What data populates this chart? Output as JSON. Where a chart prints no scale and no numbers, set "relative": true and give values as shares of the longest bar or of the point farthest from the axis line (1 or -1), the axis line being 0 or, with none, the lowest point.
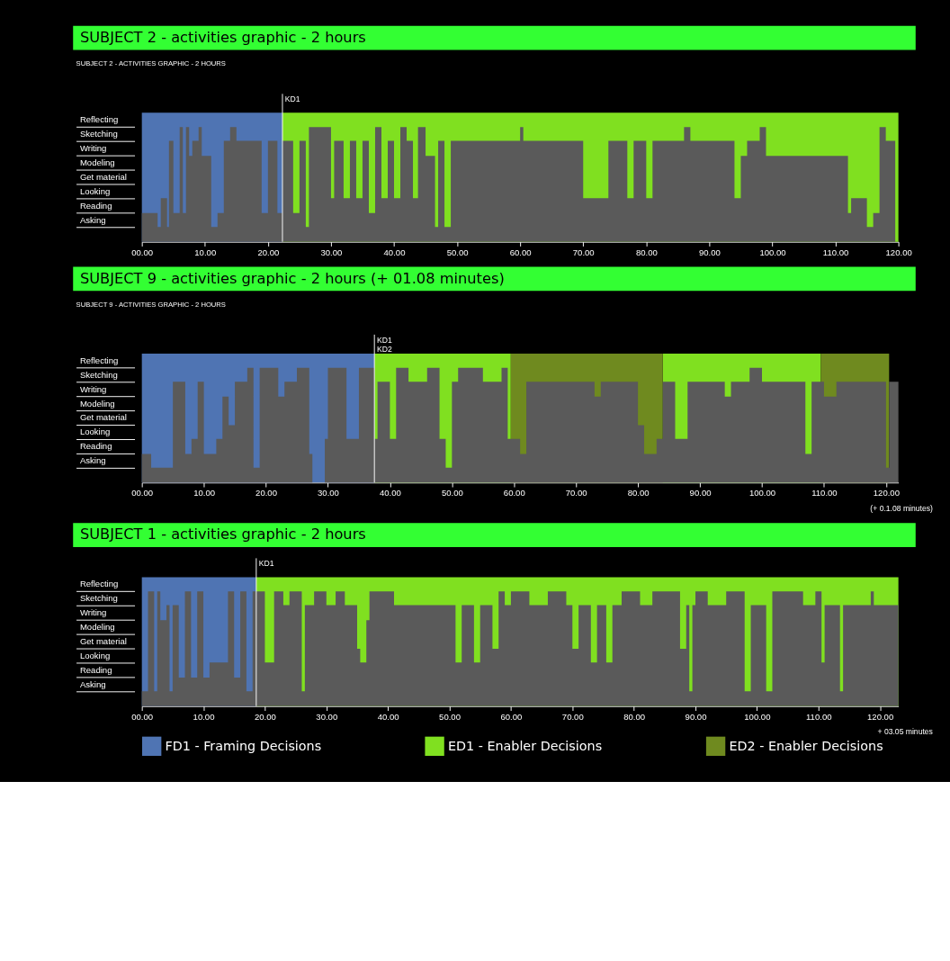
{
  "chart_data": [
    {
      "type": "area",
      "title": "SUBJECT 2 - activities graphic - 2 hours",
      "subtitle": "SUBJECT 2 - ACTIVITIES GRAPHIC - 2 HOURS",
      "relative": true,
      "xlim": [
        0,
        120
      ],
      "xticks": [
        {
          "value": 0,
          "label": "00.00"
        },
        {
          "value": 10,
          "label": "10.00"
        },
        {
          "value": 20,
          "label": "20.00"
        },
        {
          "value": 30,
          "label": "30.00"
        },
        {
          "value": 40,
          "label": "40.00"
        },
        {
          "value": 50,
          "label": "50.00"
        },
        {
          "value": 60,
          "label": "60.00"
        },
        {
          "value": 70,
          "label": "70.00"
        },
        {
          "value": 80,
          "label": "80.00"
        },
        {
          "value": 90,
          "label": "90.00"
        },
        {
          "value": 100,
          "label": "100.00"
        },
        {
          "value": 110,
          "label": "110.00"
        },
        {
          "value": 120,
          "label": "120.00"
        }
      ],
      "grid": false,
      "series": [
        {
          "color": "#5a5a5a",
          "x": [
            0,
            2.5,
            3,
            4,
            4.3,
            5,
            6,
            6.5,
            7,
            7.5,
            8,
            9,
            9.5,
            11,
            12,
            13,
            14,
            15,
            19,
            20,
            21.5,
            22.3,
            24,
            25,
            26,
            26.5,
            30,
            30.5,
            32,
            33,
            34,
            35,
            36,
            37,
            38,
            39,
            40,
            41,
            42,
            43,
            43.8,
            45,
            46.5,
            47,
            48,
            49,
            60,
            60.5,
            70,
            74,
            77,
            78,
            80,
            81,
            86,
            87,
            94,
            95,
            96,
            98,
            99,
            101,
            112,
            112.5,
            115,
            116,
            117,
            118,
            119.5,
            120
          ],
          "values": [
            0.25,
            0.13,
            0.38,
            0.13,
            0.88,
            0.25,
            1,
            0.25,
            1,
            0.75,
            0.88,
            1,
            0.75,
            0.13,
            0.25,
            0.88,
            1,
            0.88,
            0.25,
            0.88,
            0.25,
            0.88,
            0.25,
            0.88,
            0.13,
            1,
            0.38,
            0.88,
            0.38,
            0.88,
            0.38,
            0.88,
            0.25,
            1,
            0.38,
            0.88,
            0.38,
            1,
            0.88,
            0.38,
            1,
            0.75,
            0.13,
            0.88,
            0.13,
            0.88,
            1,
            0.88,
            0.38,
            0.88,
            0.38,
            0.88,
            0.38,
            0.88,
            1,
            0.88,
            0.38,
            0.75,
            0.88,
            1,
            0.75,
            0.75,
            0.25,
            0.38,
            0.13,
            0.25,
            1,
            0.88,
            0,
            0
          ]
        }
      ],
      "bands": [
        {
          "axis": "x",
          "from": 0,
          "to": 22.3,
          "color": "#4f74b3"
        },
        {
          "axis": "x",
          "from": 22.3,
          "to": 120,
          "color": "#80e020"
        }
      ],
      "ref_lines": [
        {
          "axis": "x",
          "value": 22.3,
          "label": "KD1"
        }
      ],
      "annotations": [
        "Reflecting",
        "Sketching",
        "Writing",
        "Modeling",
        "Get material",
        "Looking",
        "Reading",
        "Asking"
      ]
    },
    {
      "type": "area",
      "title": "SUBJECT 9 - activities graphic - 2 hours (+ 01.08 minutes)",
      "subtitle": "SUBJECT 9 - ACTIVITIES GRAPHIC - 2 HOURS",
      "relative": true,
      "xlim": [
        0,
        122
      ],
      "xticks": [
        {
          "value": 0,
          "label": "00.00"
        },
        {
          "value": 10,
          "label": "10.00"
        },
        {
          "value": 20,
          "label": "20.00"
        },
        {
          "value": 30,
          "label": "30.00"
        },
        {
          "value": 40,
          "label": "40.00"
        },
        {
          "value": 50,
          "label": "50.00"
        },
        {
          "value": 60,
          "label": "60.00"
        },
        {
          "value": 70,
          "label": "70.00"
        },
        {
          "value": 80,
          "label": "80.00"
        },
        {
          "value": 90,
          "label": "90.00"
        },
        {
          "value": 100,
          "label": "100.00"
        },
        {
          "value": 110,
          "label": "110.00"
        },
        {
          "value": 120,
          "label": "120.00"
        }
      ],
      "grid": false,
      "series": [
        {
          "color": "#5a5a5a",
          "x": [
            0,
            1.5,
            4.5,
            5,
            7,
            8,
            9,
            10,
            12,
            13,
            14,
            15,
            17,
            18,
            19,
            22,
            23,
            25,
            27,
            27.5,
            29.5,
            30,
            33,
            35,
            37.5,
            38,
            40,
            41,
            43,
            46,
            48,
            49,
            50,
            51,
            55,
            58,
            59,
            61,
            62,
            73,
            74,
            80,
            81,
            83,
            84,
            86,
            88,
            94,
            95,
            98,
            100,
            107,
            108,
            110,
            112,
            120,
            120.5,
            122
          ],
          "values": [
            0.25,
            0.13,
            0.13,
            0.88,
            0.25,
            0.38,
            0.88,
            0.25,
            0.38,
            0.75,
            0.5,
            0.88,
            1,
            0.13,
            1,
            0.75,
            0.88,
            1,
            0.25,
            0,
            0.38,
            1,
            0.38,
            1,
            0.38,
            0.88,
            0.38,
            1,
            0.88,
            1,
            0.38,
            0.13,
            0.88,
            1,
            0.88,
            1,
            0.38,
            0.25,
            0.88,
            0.75,
            0.88,
            0.5,
            0.25,
            0.38,
            0.88,
            0.38,
            0.88,
            0.75,
            0.88,
            1,
            0.88,
            0.25,
            0.88,
            0.75,
            0.88,
            0.13,
            0.88,
            0.88
          ]
        }
      ],
      "bands": [
        {
          "axis": "x",
          "from": 0,
          "to": 37.5,
          "color": "#4f74b3"
        },
        {
          "axis": "x",
          "from": 37.5,
          "to": 59.5,
          "color": "#80e020"
        },
        {
          "axis": "x",
          "from": 59.5,
          "to": 84,
          "color": "#6f8a1f",
          "label": "ED2 - Enabler Decisions"
        },
        {
          "axis": "x",
          "from": 84,
          "to": 109.5,
          "color": "#80e020"
        },
        {
          "axis": "x",
          "from": 109.5,
          "to": 120.5,
          "color": "#6f8a1f"
        }
      ],
      "ref_lines": [
        {
          "axis": "x",
          "value": 37.5,
          "label": "KD1\nKD2"
        }
      ],
      "annotations": [
        "Reflecting",
        "Sketching",
        "Writing",
        "Modeling",
        "Get material",
        "Looking",
        "Reading",
        "Asking",
        "(+ 0.1.08 minutes)"
      ]
    },
    {
      "type": "area",
      "title": "SUBJECT 1 - activities graphic - 2 hours",
      "relative": true,
      "xlim": [
        0,
        123
      ],
      "xticks": [
        {
          "value": 0,
          "label": "00.00"
        },
        {
          "value": 10,
          "label": "10.00"
        },
        {
          "value": 20,
          "label": "20.00"
        },
        {
          "value": 30,
          "label": "30.00"
        },
        {
          "value": 40,
          "label": "40.00"
        },
        {
          "value": 50,
          "label": "50.00"
        },
        {
          "value": 60,
          "label": "60.00"
        },
        {
          "value": 70,
          "label": "70.00"
        },
        {
          "value": 80,
          "label": "80.00"
        },
        {
          "value": 90,
          "label": "90.00"
        },
        {
          "value": 100,
          "label": "100.00"
        },
        {
          "value": 110,
          "label": "110.00"
        },
        {
          "value": 120,
          "label": "120.00"
        }
      ],
      "grid": false,
      "legend": "bottom",
      "series": [
        {
          "color": "#5a5a5a",
          "x": [
            0,
            1,
            2,
            2.5,
            3,
            4,
            4.5,
            5,
            6,
            7,
            8,
            9,
            10,
            11,
            14,
            15,
            16,
            17,
            18,
            20,
            21.5,
            23,
            24,
            26,
            26.5,
            28,
            30,
            31.5,
            33,
            35,
            35.5,
            36.5,
            37,
            41,
            51,
            52,
            54,
            55,
            57,
            58,
            59,
            60,
            63,
            66,
            69,
            70,
            71,
            73,
            74,
            75.5,
            76.5,
            78,
            81,
            83,
            87.5,
            88.5,
            89,
            89.5,
            90,
            92,
            95,
            98,
            99,
            101.5,
            102.5,
            107.5,
            109.5,
            110.5,
            111,
            113.5,
            114,
            118.5,
            119,
            123
          ],
          "values": [
            0.13,
            1,
            0.13,
            1,
            0.75,
            0.88,
            0.13,
            0.88,
            0.25,
            1,
            0.25,
            1,
            0.25,
            0.38,
            1,
            0.25,
            1,
            0.13,
            1,
            0.38,
            1,
            0.88,
            1,
            0.13,
            0.88,
            1,
            0.88,
            1,
            0.88,
            0.5,
            0.38,
            0.75,
            1,
            0.88,
            0.38,
            0.88,
            0.38,
            0.88,
            0.5,
            1,
            0.88,
            1,
            0.88,
            1,
            0.88,
            0.5,
            0.88,
            0.38,
            0.88,
            0.38,
            0.88,
            1,
            0.88,
            1,
            0.5,
            0.88,
            0.13,
            0.88,
            1,
            0.88,
            1,
            0.13,
            0.88,
            0.13,
            1,
            0.88,
            1,
            0.38,
            0.88,
            0.13,
            0.88,
            1,
            0.88,
            0.88
          ]
        }
      ],
      "bands": [
        {
          "axis": "x",
          "from": 0,
          "to": 18.6,
          "color": "#4f74b3",
          "label": "FD1 - Framing Decisions"
        },
        {
          "axis": "x",
          "from": 18.6,
          "to": 123,
          "color": "#80e020",
          "label": "ED1 - Enabler Decisions"
        }
      ],
      "ref_lines": [
        {
          "axis": "x",
          "value": 18.6,
          "label": "KD1"
        }
      ],
      "annotations": [
        "Reflecting",
        "Sketching",
        "Writing",
        "Modeling",
        "Get material",
        "Looking",
        "Reading",
        "Asking",
        "+ 03.05 minutes"
      ]
    }
  ]
}
